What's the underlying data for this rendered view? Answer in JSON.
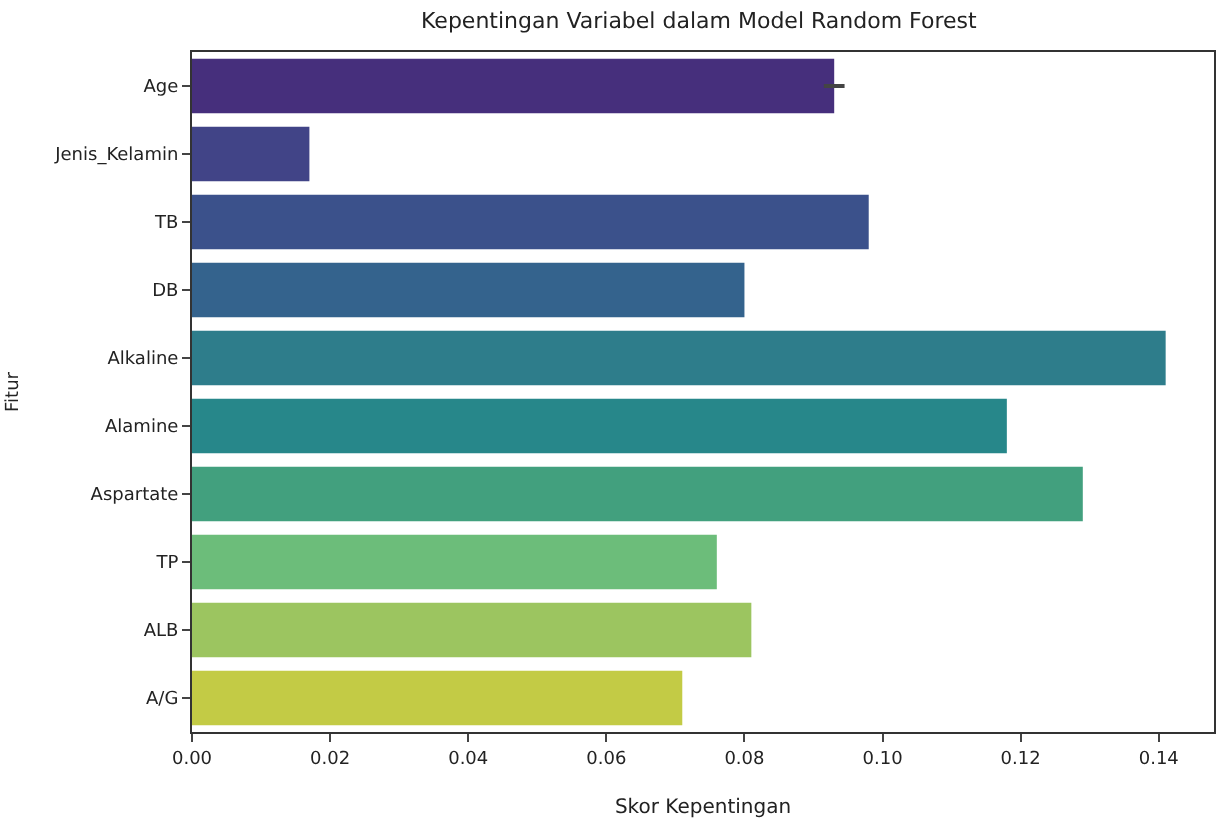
{
  "chart_data": {
    "type": "bar",
    "orientation": "horizontal",
    "title": "Kepentingan Variabel dalam Model Random Forest",
    "xlabel": "Skor Kepentingan",
    "ylabel": "Fitur",
    "categories": [
      "Age",
      "Jenis_Kelamin",
      "TB",
      "DB",
      "Alkaline",
      "Alamine",
      "Aspartate",
      "TP",
      "ALB",
      "A/G"
    ],
    "values": [
      0.093,
      0.017,
      0.098,
      0.08,
      0.141,
      0.118,
      0.129,
      0.076,
      0.081,
      0.071
    ],
    "errors": [
      0.0015,
      null,
      null,
      null,
      null,
      null,
      null,
      null,
      null,
      null
    ],
    "colors": [
      "#462f7c",
      "#414487",
      "#3b518b",
      "#34638d",
      "#2e7d8b",
      "#27878a",
      "#42a07e",
      "#6cbd7a",
      "#9cc560",
      "#c3cb45"
    ],
    "xlim": [
      0,
      0.148
    ],
    "xticks": [
      {
        "value": 0,
        "label": "0.00"
      },
      {
        "value": 0.02,
        "label": "0.02"
      },
      {
        "value": 0.04,
        "label": "0.04"
      },
      {
        "value": 0.06,
        "label": "0.06"
      },
      {
        "value": 0.08,
        "label": "0.08"
      },
      {
        "value": 0.1,
        "label": "0.10"
      },
      {
        "value": 0.12,
        "label": "0.12"
      },
      {
        "value": 0.14,
        "label": "0.14"
      }
    ],
    "tick_labels": "xy"
  }
}
